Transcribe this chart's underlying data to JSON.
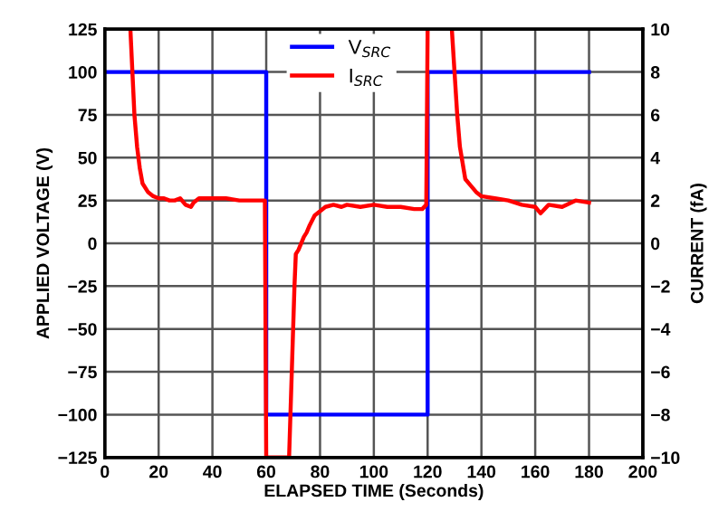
{
  "chart_data": {
    "type": "line",
    "xlabel": "ELAPSED TIME (Seconds)",
    "ylabel": "APPLIED VOLTAGE (V)",
    "y2label": "CURRENT (fA)",
    "xlim": [
      0,
      200
    ],
    "xticks": [
      0,
      20,
      40,
      60,
      80,
      100,
      120,
      140,
      160,
      180,
      200
    ],
    "ylim": [
      -125,
      125
    ],
    "yticks": [
      {
        "value": -125,
        "label": "−125"
      },
      {
        "value": -100,
        "label": "−100"
      },
      {
        "value": -75,
        "label": "−75"
      },
      {
        "value": -50,
        "label": "−50"
      },
      {
        "value": -25,
        "label": "−25"
      },
      0,
      25,
      50,
      75,
      100,
      125
    ],
    "y2lim": [
      -10,
      10
    ],
    "y2ticks": [
      {
        "value": -10,
        "label": "−10"
      },
      {
        "value": -8,
        "label": "−8"
      },
      {
        "value": -6,
        "label": "−6"
      },
      {
        "value": -4,
        "label": "−4"
      },
      {
        "value": -2,
        "label": "−2"
      },
      0,
      2,
      4,
      6,
      8,
      10
    ],
    "grid": true,
    "legend": "top",
    "line_style": "solid",
    "marker": "none",
    "series": [
      {
        "name": "V$_{SRC}$",
        "color": "#0000ff",
        "x": [
          0,
          60,
          60,
          120,
          120,
          180
        ],
        "values": [
          100,
          100,
          -100,
          -100,
          100,
          100
        ]
      },
      {
        "name": "I$_{SRC}$",
        "color": "#ff0000",
        "axis": "y2",
        "x": [
          9.5,
          11,
          12,
          13,
          14,
          16,
          18,
          20,
          22,
          24,
          26,
          28,
          30,
          32,
          33,
          35,
          40,
          45,
          50,
          55,
          58,
          59.5,
          60,
          68.5,
          69.5,
          70.5,
          71,
          72,
          74,
          75,
          76,
          78,
          80,
          82,
          85,
          88,
          90,
          95,
          100,
          105,
          110,
          115,
          118,
          119.5,
          120,
          125,
          129,
          130,
          131,
          132,
          134,
          136,
          138,
          140,
          145,
          150,
          155,
          160,
          162,
          165,
          170,
          175,
          180
        ],
        "values": [
          10,
          6,
          4.5,
          3.5,
          2.8,
          2.4,
          2.2,
          2.1,
          2.1,
          2.0,
          2.0,
          2.1,
          1.8,
          1.7,
          1.9,
          2.1,
          2.1,
          2.1,
          2.0,
          2.0,
          2.0,
          2.0,
          -10,
          -10,
          -6,
          -2,
          -0.5,
          -0.3,
          0.3,
          0.5,
          0.8,
          1.3,
          1.5,
          1.7,
          1.8,
          1.7,
          1.8,
          1.7,
          1.8,
          1.7,
          1.7,
          1.6,
          1.6,
          1.8,
          10,
          null,
          10,
          8,
          6,
          4.5,
          3.0,
          2.7,
          2.4,
          2.2,
          2.1,
          2.0,
          1.8,
          1.7,
          1.4,
          1.8,
          1.7,
          2.0,
          1.9
        ]
      }
    ]
  }
}
